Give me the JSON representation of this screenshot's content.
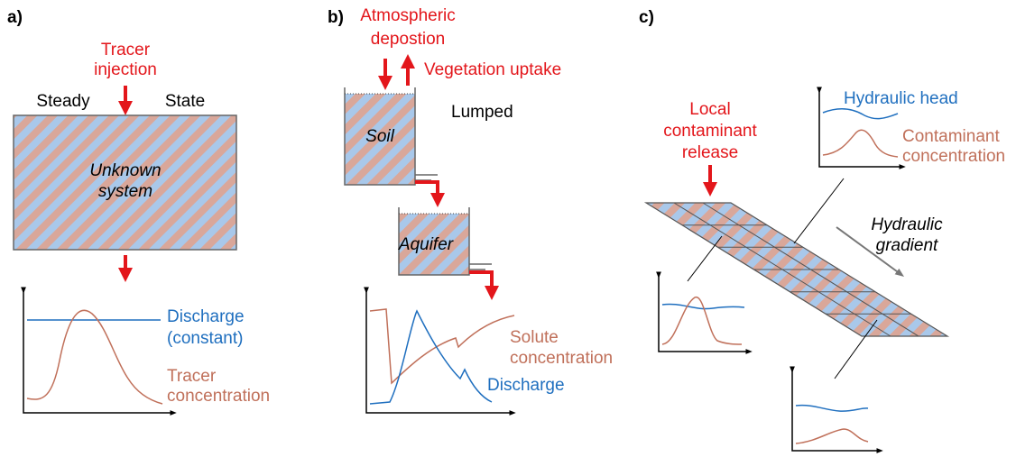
{
  "panel_a": {
    "label": "a)",
    "input": [
      "Tracer",
      "injection"
    ],
    "state": [
      "Steady",
      "State"
    ],
    "system": [
      "Unknown",
      "system"
    ],
    "discharge": [
      "Discharge",
      "(constant)"
    ],
    "tracer": [
      "Tracer",
      "concentration"
    ]
  },
  "panel_b": {
    "label": "b)",
    "input": [
      "Atmospheric",
      "depostion"
    ],
    "output": "Vegetation uptake",
    "model": "Lumped",
    "stores": [
      "Soil",
      "Aquifer"
    ],
    "solute": [
      "Solute",
      "concentration"
    ],
    "discharge": "Discharge"
  },
  "panel_c": {
    "label": "c)",
    "input": [
      "Local",
      "contaminant",
      "release"
    ],
    "head": "Hydraulic head",
    "contaminant": [
      "Contaminant",
      "concentration"
    ],
    "gradient": [
      "Hydraulic",
      "gradient"
    ]
  }
}
